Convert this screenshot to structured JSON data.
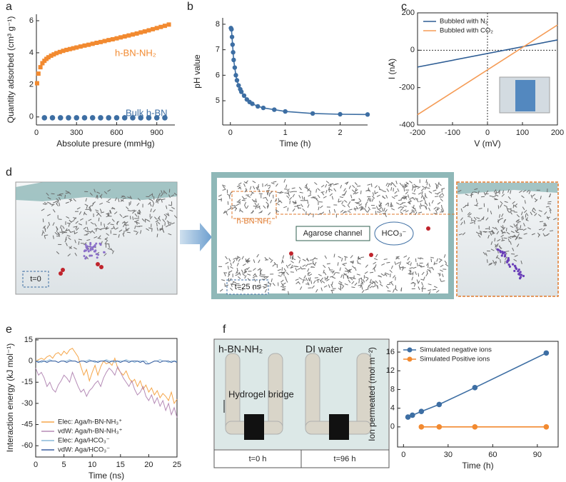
{
  "panel_labels": [
    "a",
    "b",
    "c",
    "d",
    "e",
    "f"
  ],
  "chart_data": [
    {
      "type": "scatter",
      "x_label": "Absolute presure (mmHg)",
      "y_label": "Quantity adsorbed (cm³ g⁻¹)",
      "xlim": [
        0,
        1035
      ],
      "ylim": [
        -0.5,
        6.4
      ],
      "xticks": [
        0,
        300,
        600,
        900
      ],
      "yticks": [
        0,
        2,
        4,
        6
      ],
      "legend": "inline",
      "series": [
        {
          "name": "h-BN-NH₂",
          "color": "#f28a30",
          "marker": "square",
          "line": false,
          "x": [
            5,
            15,
            30,
            45,
            60,
            75,
            90,
            110,
            130,
            150,
            175,
            200,
            225,
            250,
            275,
            300,
            330,
            360,
            390,
            420,
            450,
            480,
            510,
            540,
            570,
            600,
            630,
            660,
            690,
            720,
            750,
            780,
            810,
            840,
            870,
            900,
            930,
            960,
            990
          ],
          "values": [
            2.1,
            2.7,
            3.1,
            3.35,
            3.5,
            3.62,
            3.72,
            3.82,
            3.9,
            3.98,
            4.05,
            4.12,
            4.18,
            4.23,
            4.28,
            4.33,
            4.39,
            4.45,
            4.5,
            4.56,
            4.62,
            4.67,
            4.73,
            4.79,
            4.84,
            4.9,
            4.96,
            5.02,
            5.08,
            5.14,
            5.2,
            5.27,
            5.33,
            5.4,
            5.47,
            5.54,
            5.61,
            5.68,
            5.76
          ]
        },
        {
          "name": "Bulk h-BN",
          "color": "#3d6ea3",
          "marker": "circle",
          "line": false,
          "x": [
            60,
            120,
            180,
            240,
            300,
            360,
            420,
            480,
            540,
            600,
            660,
            720,
            780,
            840,
            900,
            960
          ],
          "values": [
            -0.05,
            -0.05,
            -0.05,
            -0.05,
            -0.05,
            -0.05,
            -0.05,
            -0.05,
            -0.05,
            -0.05,
            -0.05,
            -0.05,
            -0.05,
            -0.05,
            -0.05,
            -0.05
          ]
        }
      ]
    },
    {
      "type": "line",
      "x_label": "Time (h)",
      "y_label": "pH value",
      "xlim": [
        -0.14,
        2.5
      ],
      "ylim": [
        4.05,
        8.25
      ],
      "xticks": [
        0,
        1,
        2
      ],
      "yticks": [
        5,
        6,
        7,
        8
      ],
      "legend": "none",
      "series": [
        {
          "color": "#3d6ea3",
          "marker": "circle",
          "line": true,
          "x": [
            0.01,
            0.02,
            0.03,
            0.04,
            0.05,
            0.06,
            0.08,
            0.1,
            0.12,
            0.15,
            0.18,
            0.2,
            0.25,
            0.3,
            0.35,
            0.4,
            0.5,
            0.6,
            0.8,
            1.0,
            1.5,
            2.0,
            2.5
          ],
          "values": [
            7.85,
            7.8,
            7.5,
            7.2,
            6.9,
            6.6,
            6.3,
            6.0,
            5.8,
            5.6,
            5.45,
            5.35,
            5.2,
            5.05,
            4.95,
            4.88,
            4.78,
            4.72,
            4.65,
            4.58,
            4.5,
            4.47,
            4.46
          ]
        }
      ]
    },
    {
      "type": "line",
      "x_label": "V (mV)",
      "y_label": "I (nA)",
      "xlim": [
        -200,
        200
      ],
      "ylim": [
        -400,
        200
      ],
      "xticks": [
        -200,
        -100,
        0,
        100,
        200
      ],
      "yticks": [
        -400,
        -200,
        0,
        200
      ],
      "legend": "upper left",
      "zero_lines": true,
      "series": [
        {
          "name": "Bubbled with N₂",
          "color": "#2e5d94",
          "marker": "none",
          "line": true,
          "x": [
            -200,
            200
          ],
          "values": [
            -90,
            55
          ]
        },
        {
          "name": "Bubbled with CO₂",
          "color": "#f59b55",
          "marker": "none",
          "line": true,
          "x": [
            -200,
            200
          ],
          "values": [
            -345,
            135
          ]
        }
      ]
    },
    {
      "type": "line",
      "x_label": "Time (ns)",
      "y_label": "Interaction energy (kJ mol⁻¹)",
      "xlim": [
        0,
        25
      ],
      "ylim": [
        -68,
        16
      ],
      "xticks": [
        0,
        5,
        10,
        15,
        20,
        25
      ],
      "yticks": [
        15,
        0,
        -15,
        -30,
        -45,
        -60
      ],
      "legend": "lower left",
      "x": [
        0,
        0.5,
        1,
        1.5,
        2,
        2.5,
        3,
        3.5,
        4,
        4.5,
        5,
        5.5,
        6,
        6.5,
        7,
        7.5,
        8,
        8.5,
        9,
        9.5,
        10,
        10.5,
        11,
        11.5,
        12,
        12.5,
        13,
        13.5,
        14,
        14.5,
        15,
        15.5,
        16,
        16.5,
        17,
        17.5,
        18,
        18.5,
        19,
        19.5,
        20,
        20.5,
        21,
        21.5,
        22,
        22.5,
        23,
        23.5,
        24,
        24.5,
        25
      ],
      "series": [
        {
          "name": "Elec: Aga/h-BN-NH₃⁺",
          "color": "#f5a64a",
          "marker": "none",
          "line": true,
          "values": [
            0,
            1,
            2,
            1,
            3,
            4,
            2,
            5,
            6,
            4,
            7,
            5,
            8,
            9,
            6,
            3,
            -4,
            -10,
            -6,
            -14,
            -8,
            -3,
            -10,
            -4,
            0,
            -2,
            -1,
            -3,
            2,
            -5,
            -8,
            -10,
            -7,
            -12,
            -15,
            -13,
            -18,
            -14,
            -20,
            -17,
            -22,
            -19,
            -24,
            -21,
            -26,
            -23,
            -25,
            -28,
            -22,
            -30,
            -27
          ]
        },
        {
          "name": "vdW: Aga/h-BN-NH₃⁺",
          "color": "#b58bb6",
          "marker": "none",
          "line": true,
          "values": [
            -5,
            -10,
            -8,
            -12,
            -18,
            -15,
            -20,
            -22,
            -17,
            -14,
            -10,
            -12,
            -15,
            -8,
            -13,
            -18,
            -22,
            -20,
            -25,
            -21,
            -19,
            -16,
            -14,
            -18,
            -12,
            -8,
            -5,
            -7,
            -10,
            -4,
            -8,
            -12,
            -15,
            -18,
            -14,
            -20,
            -24,
            -22,
            -18,
            -25,
            -28,
            -24,
            -30,
            -26,
            -32,
            -28,
            -35,
            -30,
            -38,
            -33,
            -40
          ]
        },
        {
          "name": "Elec: Aga/HCO₃⁻",
          "color": "#8ab8d8",
          "marker": "none",
          "line": true,
          "values": [
            0,
            0,
            -1,
            0,
            0,
            1,
            0,
            0,
            -1,
            0,
            0,
            0,
            1,
            0,
            0,
            -1,
            0,
            0,
            0,
            1,
            0,
            -1,
            0,
            0,
            0,
            1,
            0,
            0,
            -1,
            0,
            0,
            0,
            1,
            0,
            0,
            -1,
            0,
            0,
            0,
            0,
            -2,
            -1,
            0,
            0,
            1,
            0,
            0,
            -1,
            0,
            0,
            0
          ]
        },
        {
          "name": "vdW: Aga/HCO₃⁻",
          "color": "#3a5fa0",
          "marker": "none",
          "line": true,
          "values": [
            0,
            -1,
            0,
            0,
            -1,
            0,
            0,
            0,
            -1,
            0,
            0,
            -1,
            0,
            0,
            0,
            -1,
            0,
            0,
            -1,
            0,
            0,
            0,
            -1,
            0,
            0,
            0,
            -1,
            0,
            0,
            0,
            -1,
            0,
            0,
            -1,
            0,
            0,
            0,
            -1,
            0,
            -2,
            -2,
            -1,
            0,
            0,
            -1,
            0,
            0,
            0,
            -1,
            0,
            -1
          ]
        }
      ]
    },
    {
      "type": "line",
      "x_label": "Time (h)",
      "y_label": "Ion permeated (mol m⁻²)",
      "xlim": [
        -4,
        104
      ],
      "ylim": [
        -4.3,
        18.3
      ],
      "xticks": [
        0,
        30,
        60,
        90
      ],
      "yticks": [
        0,
        4,
        8,
        12,
        16
      ],
      "legend": "upper left",
      "series": [
        {
          "name": "Simulated negative ions",
          "color": "#3d6ea3",
          "marker": "circle",
          "line": true,
          "x": [
            3,
            6,
            12,
            24,
            48,
            96
          ],
          "values": [
            2.1,
            2.5,
            3.3,
            4.8,
            8.4,
            15.8
          ]
        },
        {
          "name": "Simulated Positive ions",
          "color": "#f28a30",
          "marker": "circle",
          "line": true,
          "x": [
            12,
            24,
            48,
            96
          ],
          "values": [
            0,
            0,
            0,
            0
          ]
        }
      ]
    }
  ],
  "snapshots": {
    "initial_time": "t=0",
    "material": "h-BN-NH₂",
    "channel": "Agarose channel",
    "ion": "HCO₃⁻",
    "final_time": "t=25 ns"
  },
  "photo": {
    "left_sample": "h-BN-NH₂",
    "right_sample": "DI water",
    "bridge": "Hydrogel bridge",
    "times": [
      "t=0 h",
      "t=96 h"
    ]
  }
}
